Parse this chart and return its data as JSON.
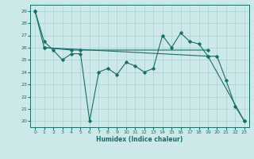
{
  "xlabel": "Humidex (Indice chaleur)",
  "background_color": "#cce8e8",
  "line_color": "#1a6e6a",
  "grid_color": "#aad0d0",
  "xlim": [
    -0.5,
    23.5
  ],
  "ylim": [
    19.5,
    29.5
  ],
  "yticks": [
    20,
    21,
    22,
    23,
    24,
    25,
    26,
    27,
    28,
    29
  ],
  "xticks": [
    0,
    1,
    2,
    3,
    4,
    5,
    6,
    7,
    8,
    9,
    10,
    11,
    12,
    13,
    14,
    15,
    16,
    17,
    18,
    19,
    20,
    21,
    22,
    23
  ],
  "line1_x": [
    0,
    1,
    2,
    3,
    4,
    5,
    6,
    7,
    8,
    9,
    10,
    11,
    12,
    13,
    14,
    15,
    16,
    17,
    18,
    19,
    20,
    21,
    22,
    23
  ],
  "line1_y": [
    29.0,
    26.5,
    25.8,
    25.0,
    25.5,
    25.5,
    20.0,
    24.0,
    24.3,
    23.8,
    24.8,
    24.5,
    24.0,
    24.3,
    27.0,
    26.0,
    27.2,
    26.5,
    26.3,
    25.3,
    25.3,
    23.3,
    21.2,
    20.0
  ],
  "line2_x": [
    0,
    1,
    19,
    23
  ],
  "line2_y": [
    29.0,
    26.0,
    25.3,
    20.0
  ],
  "line3_x": [
    1,
    4,
    5,
    19
  ],
  "line3_y": [
    26.0,
    25.8,
    25.8,
    25.8
  ]
}
